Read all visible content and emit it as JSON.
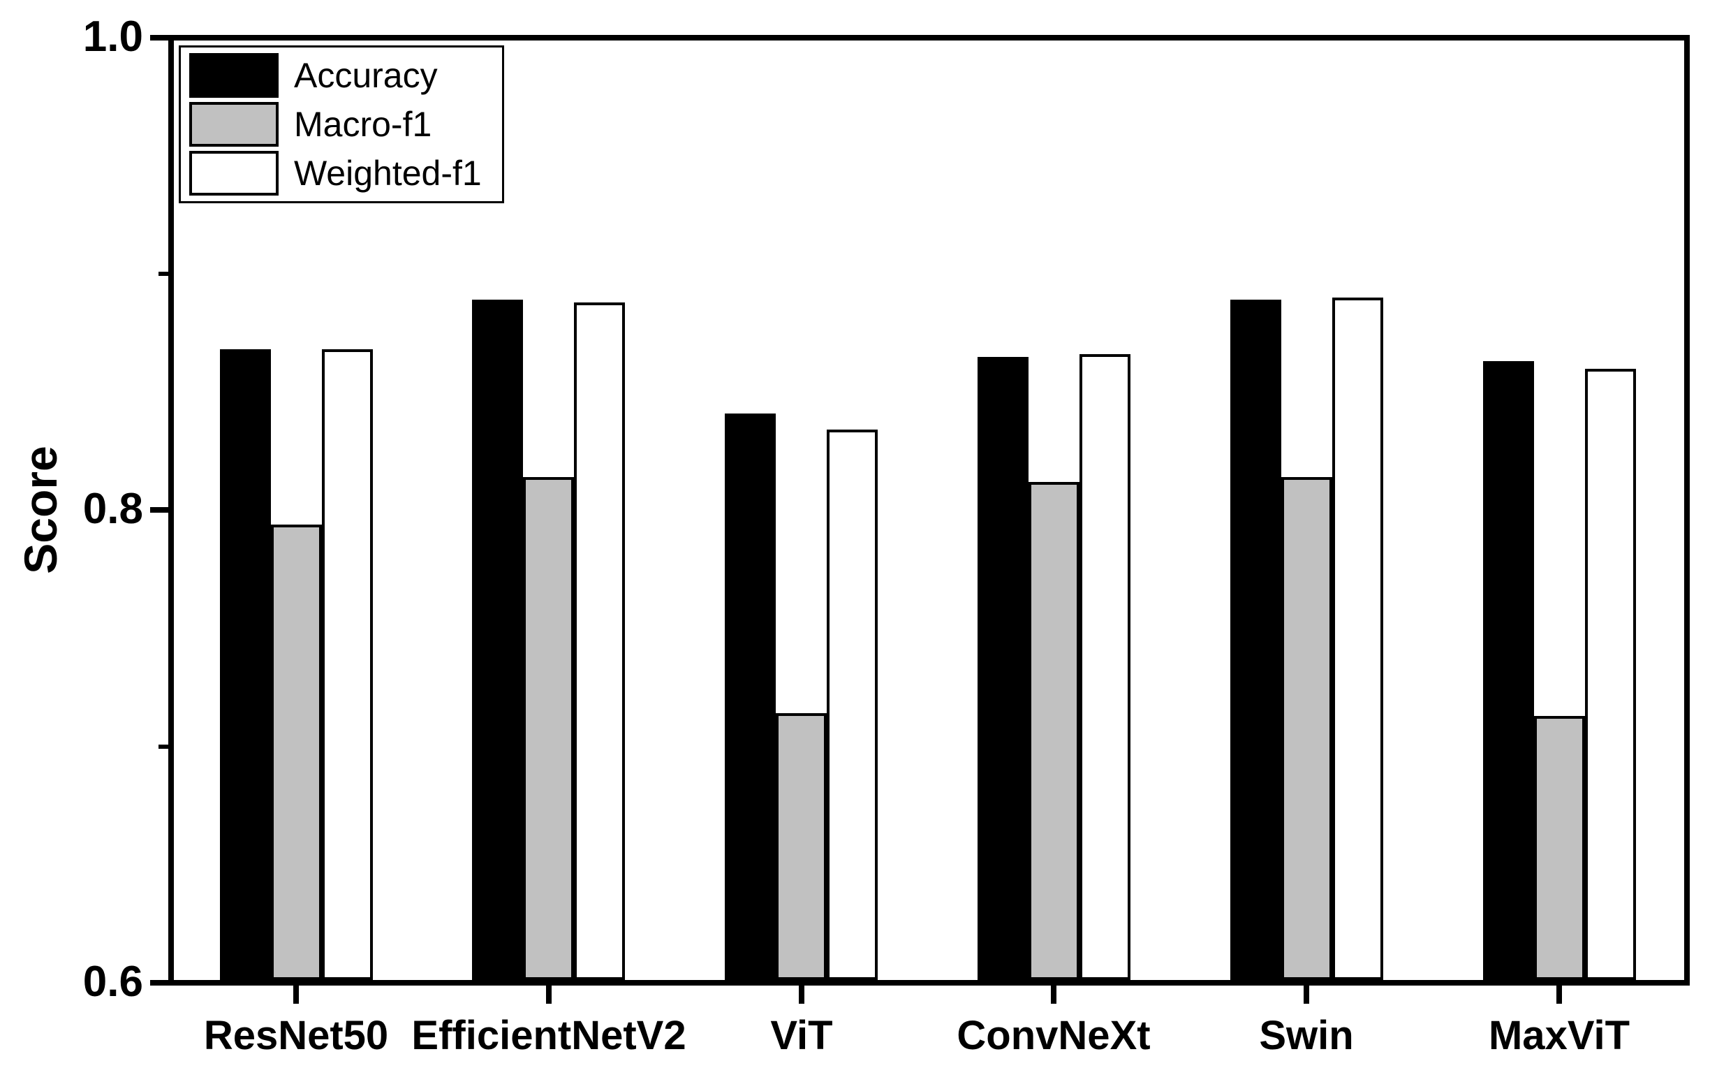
{
  "figure": {
    "background": "#ffffff",
    "axis_color": "#000000",
    "ylabel": "Score"
  },
  "legend": {
    "position": "upper-left",
    "items": [
      {
        "label": "Accuracy",
        "color": "#000000"
      },
      {
        "label": "Macro-f1",
        "color": "#c1c1c1"
      },
      {
        "label": "Weighted-f1",
        "color": "#ffffff"
      }
    ]
  },
  "chart_data": {
    "type": "bar",
    "title": "",
    "xlabel": "",
    "ylabel": "Score",
    "ylim": [
      0.6,
      1.0
    ],
    "yticks_major": [
      0.6,
      0.8,
      1.0
    ],
    "ytick_labels": [
      "0.6",
      "0.8",
      "1.0"
    ],
    "yticks_minor": [
      0.7,
      0.9
    ],
    "grid": false,
    "legend_position": "upper left",
    "categories": [
      "ResNet50",
      "EfficientNetV2",
      "ViT",
      "ConvNeXt",
      "Swin",
      "MaxViT"
    ],
    "series": [
      {
        "name": "Accuracy",
        "fill": "#000000",
        "values": [
          0.868,
          0.889,
          0.841,
          0.865,
          0.889,
          0.863
        ]
      },
      {
        "name": "Macro-f1",
        "fill": "#c1c1c1",
        "values": [
          0.794,
          0.814,
          0.714,
          0.812,
          0.814,
          0.713
        ]
      },
      {
        "name": "Weighted-f1",
        "fill": "#ffffff",
        "values": [
          0.868,
          0.888,
          0.834,
          0.866,
          0.89,
          0.86
        ]
      }
    ]
  }
}
